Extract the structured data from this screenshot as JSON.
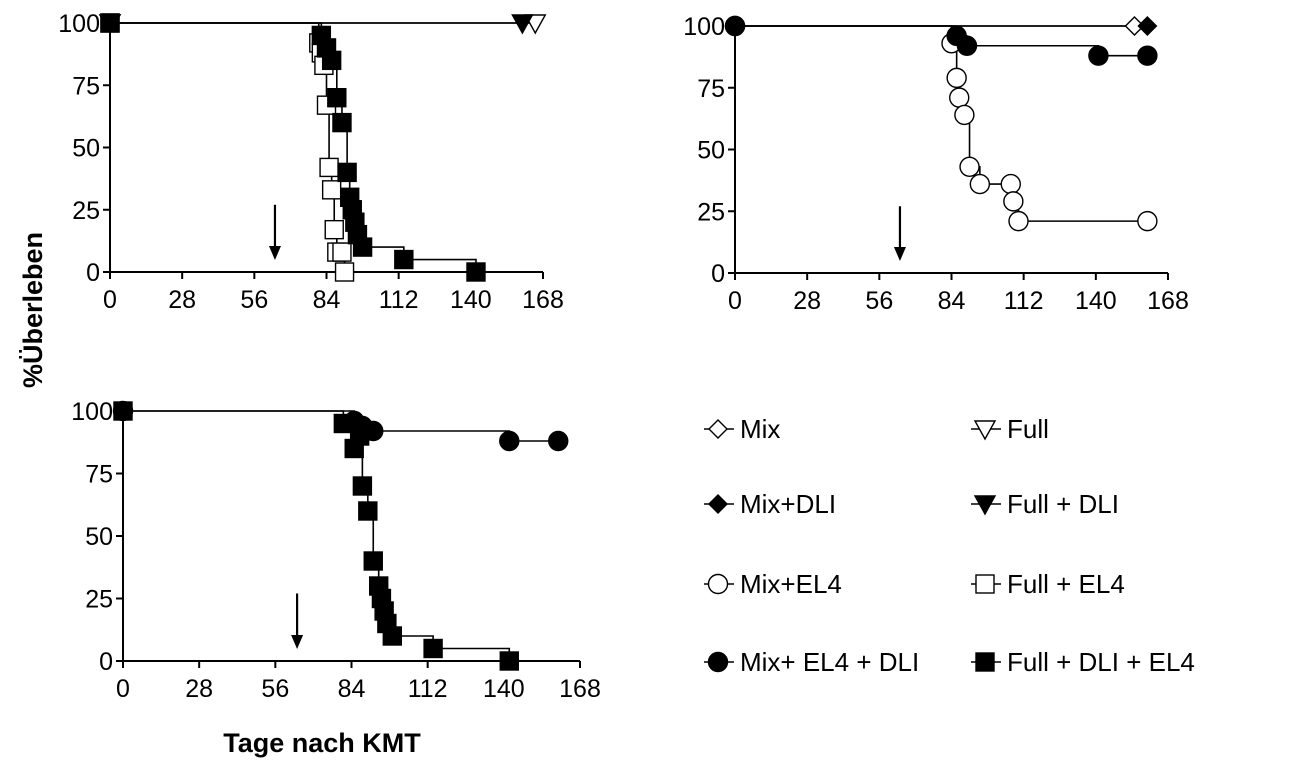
{
  "ylabel": "%Überleben",
  "xlabel": "Tage nach KMT",
  "colors": {
    "line": "#000000",
    "filled": "#000000",
    "open": "#ffffff"
  },
  "chart_data": [
    {
      "type": "line",
      "panel": "top-left",
      "xlim": [
        0,
        168
      ],
      "ylim": [
        0,
        100
      ],
      "xticks": [
        "0",
        "28",
        "56",
        "84",
        "112",
        "140",
        "168"
      ],
      "yticks": [
        "0",
        "25",
        "50",
        "75",
        "100"
      ],
      "arrow_x": 64,
      "series": [
        {
          "name": "Full",
          "marker": "triangle-down-open",
          "x": [
            0,
            165
          ],
          "y": [
            100,
            100
          ]
        },
        {
          "name": "Full + DLI",
          "marker": "triangle-down-filled",
          "x": [
            0,
            160
          ],
          "y": [
            100,
            100
          ]
        },
        {
          "name": "Full + EL4",
          "marker": "square-open",
          "x": [
            0,
            81,
            82,
            83,
            84,
            85,
            86,
            87,
            88,
            90,
            91
          ],
          "y": [
            100,
            92,
            88,
            83,
            67,
            42,
            33,
            17,
            8,
            8,
            0
          ]
        },
        {
          "name": "Full + DLI + EL4",
          "marker": "square-filled",
          "x": [
            0,
            82,
            84,
            86,
            88,
            90,
            92,
            93,
            94,
            95,
            96,
            98,
            114,
            142
          ],
          "y": [
            100,
            95,
            90,
            85,
            70,
            60,
            40,
            30,
            25,
            20,
            15,
            10,
            5,
            0
          ]
        }
      ]
    },
    {
      "type": "line",
      "panel": "top-right",
      "xlim": [
        0,
        168
      ],
      "ylim": [
        0,
        100
      ],
      "xticks": [
        "0",
        "28",
        "56",
        "84",
        "112",
        "140",
        "168"
      ],
      "yticks": [
        "0",
        "25",
        "50",
        "75",
        "100"
      ],
      "arrow_x": 64,
      "series": [
        {
          "name": "Mix",
          "marker": "diamond-open",
          "x": [
            0,
            155
          ],
          "y": [
            100,
            100
          ]
        },
        {
          "name": "Mix+DLI",
          "marker": "diamond-filled",
          "x": [
            0,
            160
          ],
          "y": [
            100,
            100
          ]
        },
        {
          "name": "Mix+EL4",
          "marker": "circle-open",
          "x": [
            0,
            84,
            86,
            87,
            89,
            91,
            95,
            107,
            108,
            110,
            160
          ],
          "y": [
            100,
            93,
            79,
            71,
            64,
            43,
            36,
            36,
            29,
            21,
            21
          ]
        },
        {
          "name": "Mix+ EL4 + DLI",
          "marker": "circle-filled",
          "x": [
            0,
            86,
            90,
            141,
            160
          ],
          "y": [
            100,
            96,
            92,
            88,
            88
          ]
        }
      ]
    },
    {
      "type": "line",
      "panel": "bottom-left",
      "xlim": [
        0,
        168
      ],
      "ylim": [
        0,
        100
      ],
      "xticks": [
        "0",
        "28",
        "56",
        "84",
        "112",
        "140",
        "168"
      ],
      "yticks": [
        "0",
        "25",
        "50",
        "75",
        "100"
      ],
      "arrow_x": 64,
      "series": [
        {
          "name": "Mix+ EL4 + DLI",
          "marker": "circle-filled",
          "x": [
            0,
            85,
            88,
            92,
            142,
            160
          ],
          "y": [
            100,
            96,
            94,
            92,
            88,
            88
          ]
        },
        {
          "name": "Full + DLI + EL4",
          "marker": "square-filled",
          "x": [
            0,
            81,
            85,
            87,
            88,
            90,
            92,
            94,
            95,
            96,
            97,
            99,
            114,
            142
          ],
          "y": [
            100,
            95,
            85,
            90,
            70,
            60,
            40,
            30,
            25,
            20,
            15,
            10,
            5,
            0
          ]
        }
      ]
    }
  ],
  "legend": [
    {
      "label": "Mix",
      "marker": "diamond-open"
    },
    {
      "label": "Full",
      "marker": "triangle-down-open"
    },
    {
      "label": "Mix+DLI",
      "marker": "diamond-filled"
    },
    {
      "label": "Full + DLI",
      "marker": "triangle-down-filled"
    },
    {
      "label": "Mix+EL4",
      "marker": "circle-open"
    },
    {
      "label": "Full + EL4",
      "marker": "square-open"
    },
    {
      "label": "Mix+ EL4 + DLI",
      "marker": "circle-filled"
    },
    {
      "label": "Full + DLI + EL4",
      "marker": "square-filled"
    }
  ]
}
